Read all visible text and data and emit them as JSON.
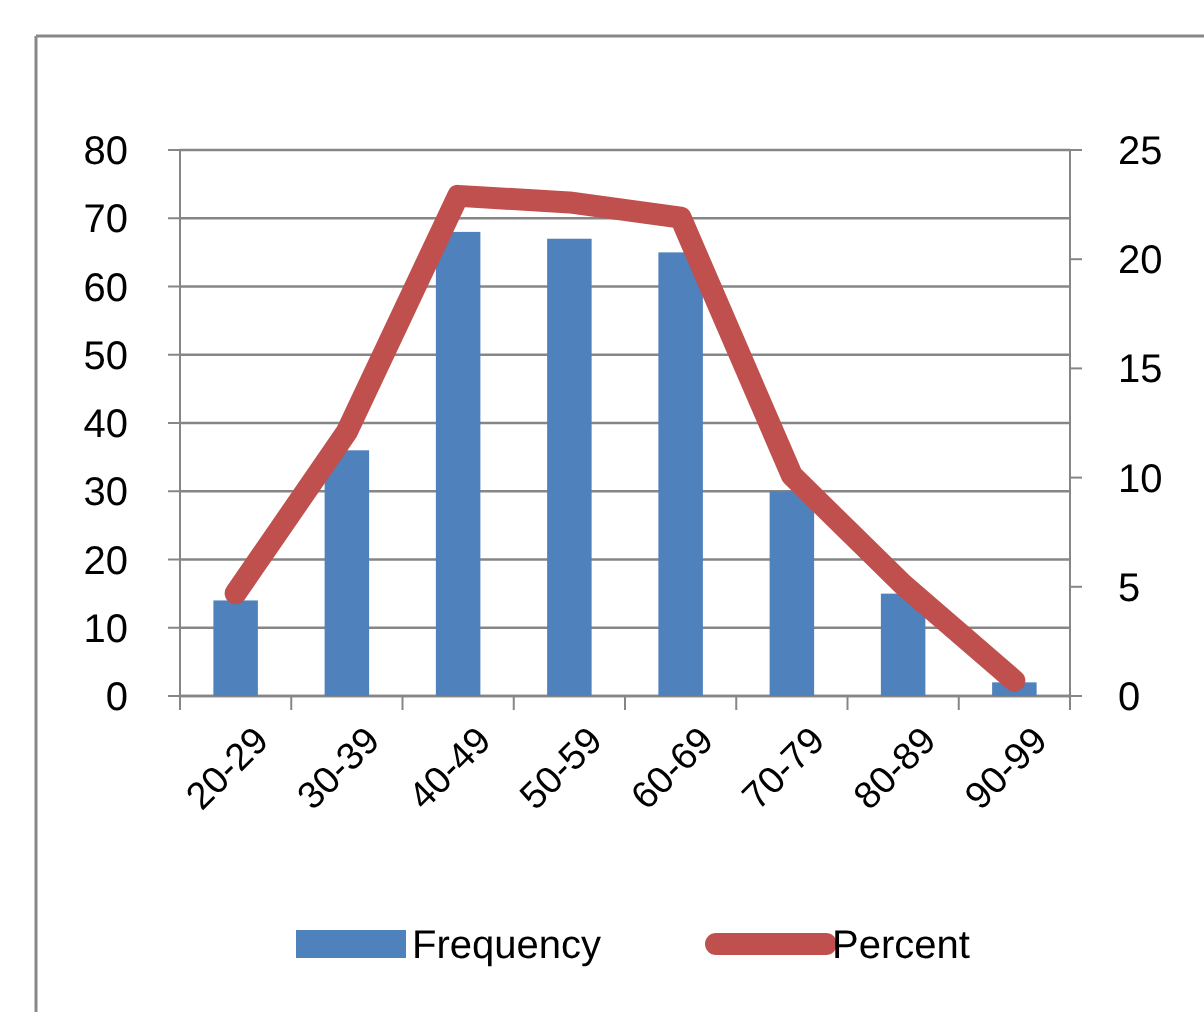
{
  "chart_data": {
    "type": "bar",
    "categories": [
      "20-29",
      "30-39",
      "40-49",
      "50-59",
      "60-69",
      "70-79",
      "80-89",
      "90-99"
    ],
    "series": [
      {
        "name": "Frequency",
        "color": "#4f81bd",
        "values": [
          14,
          36,
          68,
          67,
          65,
          30,
          15,
          2
        ]
      },
      {
        "name": "Percent",
        "type": "line",
        "axis": "y2",
        "color": "#c0504d",
        "values": [
          4.7,
          12.1,
          22.9,
          22.6,
          21.9,
          10.1,
          5.1,
          0.7
        ]
      }
    ],
    "ylim": [
      0,
      80
    ],
    "yticks": [
      0,
      10,
      20,
      30,
      40,
      50,
      60,
      70,
      80
    ],
    "y2lim": [
      0,
      25
    ],
    "y2ticks": [
      0,
      5,
      10,
      15,
      20,
      25
    ],
    "grid": "y",
    "legend": "bottom",
    "marker": "none"
  }
}
